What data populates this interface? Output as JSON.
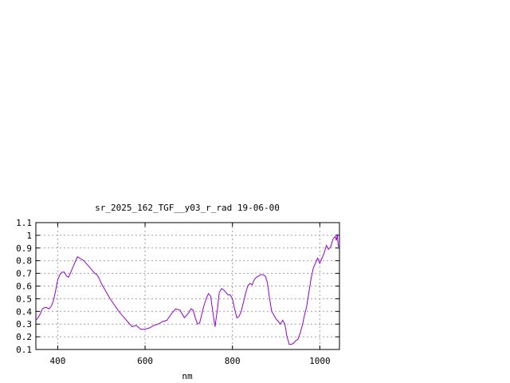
{
  "chart_data": {
    "type": "line",
    "title": "sr_2025_162_TGF__y03_r_rad 19-06-00",
    "xlabel": "nm",
    "ylabel": "",
    "xlim": [
      350,
      1045
    ],
    "ylim": [
      0.1,
      1.1
    ],
    "x_ticks": [
      400,
      600,
      800,
      1000
    ],
    "x_tick_labels": [
      "400",
      "600",
      "800",
      "1000"
    ],
    "y_ticks": [
      0.1,
      0.2,
      0.3,
      0.4,
      0.5,
      0.6,
      0.7,
      0.8,
      0.9,
      1.0,
      1.1
    ],
    "y_tick_labels": [
      "0.1",
      "0.2",
      "0.3",
      "0.4",
      "0.5",
      "0.6",
      "0.7",
      "0.8",
      "0.9",
      "1",
      "1.1"
    ],
    "grid": true,
    "legend": "none",
    "series": [
      {
        "color": "#9400d3",
        "x": [
          350,
          355,
          360,
          365,
          370,
          375,
          380,
          385,
          390,
          395,
          400,
          405,
          410,
          415,
          420,
          425,
          430,
          435,
          440,
          445,
          450,
          455,
          460,
          465,
          470,
          475,
          480,
          485,
          490,
          495,
          500,
          510,
          520,
          530,
          540,
          550,
          560,
          570,
          580,
          590,
          600,
          610,
          620,
          630,
          640,
          650,
          660,
          670,
          680,
          690,
          700,
          705,
          710,
          715,
          720,
          725,
          730,
          735,
          740,
          745,
          750,
          755,
          760,
          765,
          770,
          775,
          780,
          785,
          790,
          795,
          800,
          805,
          810,
          815,
          820,
          825,
          830,
          835,
          840,
          845,
          850,
          855,
          860,
          865,
          870,
          875,
          880,
          885,
          890,
          895,
          900,
          905,
          910,
          915,
          920,
          925,
          930,
          935,
          940,
          945,
          950,
          955,
          960,
          965,
          970,
          975,
          980,
          985,
          990,
          995,
          1000,
          1005,
          1010,
          1015,
          1020,
          1025,
          1030,
          1035,
          1038,
          1040,
          1042,
          1045
        ],
        "y": [
          0.33,
          0.35,
          0.38,
          0.42,
          0.43,
          0.43,
          0.42,
          0.44,
          0.48,
          0.56,
          0.65,
          0.69,
          0.71,
          0.71,
          0.68,
          0.67,
          0.71,
          0.75,
          0.79,
          0.83,
          0.82,
          0.81,
          0.8,
          0.78,
          0.76,
          0.74,
          0.72,
          0.7,
          0.69,
          0.66,
          0.62,
          0.56,
          0.5,
          0.45,
          0.4,
          0.36,
          0.32,
          0.28,
          0.29,
          0.26,
          0.26,
          0.27,
          0.29,
          0.3,
          0.32,
          0.33,
          0.38,
          0.42,
          0.41,
          0.35,
          0.39,
          0.42,
          0.41,
          0.35,
          0.3,
          0.31,
          0.38,
          0.45,
          0.5,
          0.54,
          0.52,
          0.4,
          0.28,
          0.4,
          0.55,
          0.58,
          0.57,
          0.55,
          0.53,
          0.53,
          0.5,
          0.42,
          0.35,
          0.36,
          0.4,
          0.47,
          0.54,
          0.6,
          0.62,
          0.61,
          0.65,
          0.67,
          0.68,
          0.69,
          0.69,
          0.68,
          0.63,
          0.5,
          0.4,
          0.37,
          0.34,
          0.32,
          0.3,
          0.33,
          0.3,
          0.2,
          0.14,
          0.14,
          0.15,
          0.17,
          0.18,
          0.23,
          0.29,
          0.37,
          0.44,
          0.55,
          0.66,
          0.74,
          0.78,
          0.82,
          0.78,
          0.82,
          0.86,
          0.92,
          0.89,
          0.91,
          0.97,
          0.99,
          0.96,
          1.01,
          0.92,
          0.9
        ]
      }
    ]
  }
}
